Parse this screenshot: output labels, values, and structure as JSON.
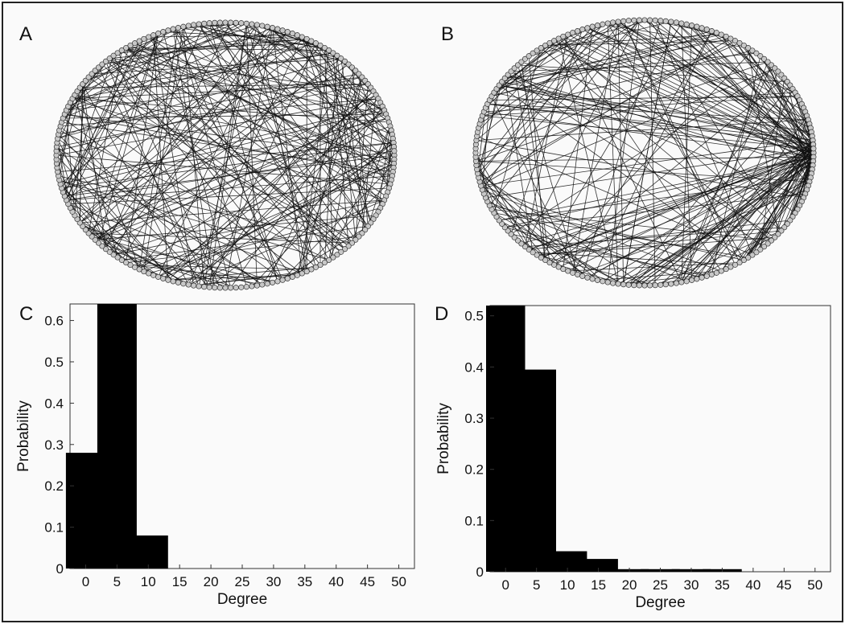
{
  "panels": {
    "a": "A",
    "b": "B",
    "c": "C",
    "d": "D"
  },
  "networks": {
    "a": {
      "node_count": 200,
      "edge_count": 300,
      "hub": false
    },
    "b": {
      "node_count": 200,
      "edge_count": 300,
      "hub": true
    }
  },
  "chart_data": [
    {
      "type": "bar",
      "panel": "C",
      "x": [
        0,
        5,
        10
      ],
      "values": [
        0.28,
        0.64,
        0.08
      ],
      "xlabel": "Degree",
      "ylabel": "Probability",
      "xlim": [
        -2.5,
        52.5
      ],
      "ylim": [
        0,
        0.64
      ],
      "xticks": [
        0,
        5,
        10,
        15,
        20,
        25,
        30,
        35,
        40,
        45,
        50
      ],
      "xtick_labels": [
        "0",
        "5",
        "10",
        "15",
        "20",
        "25",
        "30",
        "35",
        "40",
        "45",
        "50"
      ],
      "yticks": [
        0,
        0.1,
        0.2,
        0.3,
        0.4,
        0.5,
        0.6
      ],
      "ytick_labels": [
        "0",
        "0.1",
        "0.2",
        "0.3",
        "0.4",
        "0.5",
        "0.6"
      ],
      "bar_color": "#000000",
      "grid": false
    },
    {
      "type": "bar",
      "panel": "D",
      "x": [
        0,
        5,
        10,
        15,
        20,
        25,
        30,
        35
      ],
      "values": [
        0.52,
        0.395,
        0.04,
        0.025,
        0.005,
        0.005,
        0.005,
        0.005
      ],
      "xlabel": "Degree",
      "ylabel": "Probability",
      "xlim": [
        -2.5,
        52.5
      ],
      "ylim": [
        0,
        0.52
      ],
      "xticks": [
        0,
        5,
        10,
        15,
        20,
        25,
        30,
        35,
        40,
        45,
        50
      ],
      "xtick_labels": [
        "0",
        "5",
        "10",
        "15",
        "20",
        "25",
        "30",
        "35",
        "40",
        "45",
        "50"
      ],
      "yticks": [
        0,
        0.1,
        0.2,
        0.3,
        0.4,
        0.5
      ],
      "ytick_labels": [
        "0",
        "0.1",
        "0.2",
        "0.3",
        "0.4",
        "0.5"
      ],
      "bar_color": "#000000",
      "grid": false
    }
  ]
}
